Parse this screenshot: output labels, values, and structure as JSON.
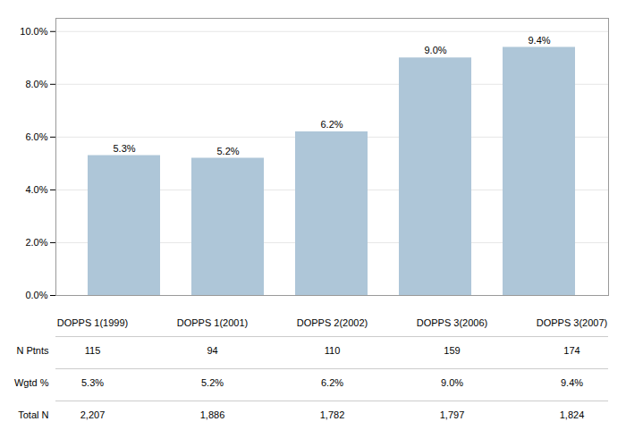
{
  "chart_data": {
    "type": "bar",
    "categories": [
      "DOPPS 1(1999)",
      "DOPPS 1(2001)",
      "DOPPS 2(2002)",
      "DOPPS 3(2006)",
      "DOPPS 3(2007)"
    ],
    "values": [
      5.3,
      5.2,
      6.2,
      9.0,
      9.4
    ],
    "value_labels": [
      "5.3%",
      "5.2%",
      "6.2%",
      "9.0%",
      "9.4%"
    ],
    "data_labels": true,
    "color": "#aec6d8",
    "ylim": [
      0,
      10.5
    ],
    "yticks": [
      {
        "value": 0,
        "label": "0.0%"
      },
      {
        "value": 2,
        "label": "2.0%"
      },
      {
        "value": 4,
        "label": "4.0%"
      },
      {
        "value": 6,
        "label": "6.0%"
      },
      {
        "value": 8,
        "label": "8.0%"
      },
      {
        "value": 10,
        "label": "10.0%"
      }
    ],
    "grid": true,
    "table": [
      {
        "name": "N Ptnts",
        "values": [
          115,
          94,
          110,
          159,
          174
        ]
      },
      {
        "name": "Wgtd %",
        "values": [
          5.3,
          5.2,
          6.2,
          9.0,
          9.4
        ],
        "value_labels": [
          "5.3%",
          "5.2%",
          "6.2%",
          "9.0%",
          "9.4%"
        ]
      },
      {
        "name": "Total N",
        "values": [
          2207,
          1886,
          1782,
          1797,
          1824
        ],
        "value_labels": [
          "2,207",
          "1,886",
          "1,782",
          "1,797",
          "1,824"
        ]
      }
    ]
  }
}
